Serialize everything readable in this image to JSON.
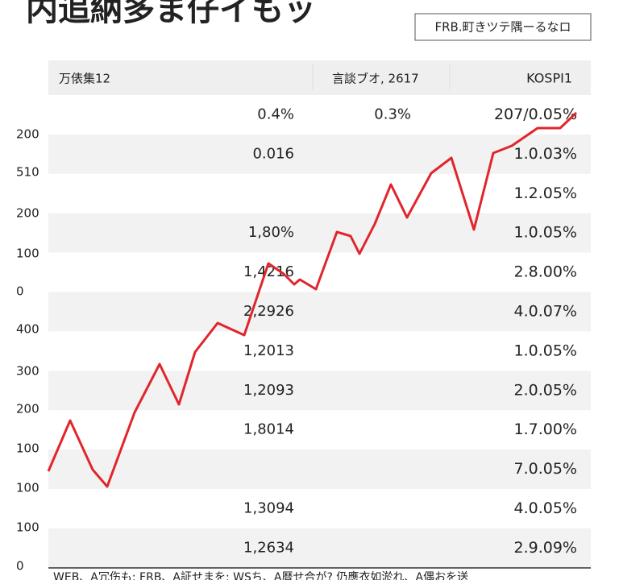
{
  "header": {
    "title": "内追納多ま仔イもッ",
    "button": "FRB.町きツテ隅ーるなロ"
  },
  "table": {
    "columns": [
      "万俵集12",
      "言談ブオ, 2617",
      "KOSPI1"
    ],
    "rows": [
      [
        "0.4%",
        "0.3%",
        "207/0.05%"
      ],
      [
        "0.016",
        null,
        "1.0.03%"
      ],
      [
        null,
        null,
        "1.2.05%"
      ],
      [
        "1,80%",
        null,
        "1.0.05%"
      ],
      [
        "1,4216",
        null,
        "2.8.00%"
      ],
      [
        "2,2926",
        null,
        "4.0.07%"
      ],
      [
        "1,2013",
        null,
        "1.0.05%"
      ],
      [
        "1,2093",
        null,
        "2.0.05%"
      ],
      [
        "1,8014",
        null,
        "1.7.00%"
      ],
      [
        null,
        null,
        "7.0.05%"
      ],
      [
        "1,3094",
        null,
        "4.0.05%"
      ],
      [
        "1,2634",
        null,
        "2.9.09%"
      ]
    ]
  },
  "axis_labels": [
    "200",
    "510",
    "200",
    "100",
    "0",
    "400",
    "300",
    "200",
    "100",
    "100",
    "100",
    "0"
  ],
  "footer": "WEB、A冗伤も: FRB、A証せまを: WSち、A暦せ合が? 仍應衣如淤れ、A偶おを送"
}
